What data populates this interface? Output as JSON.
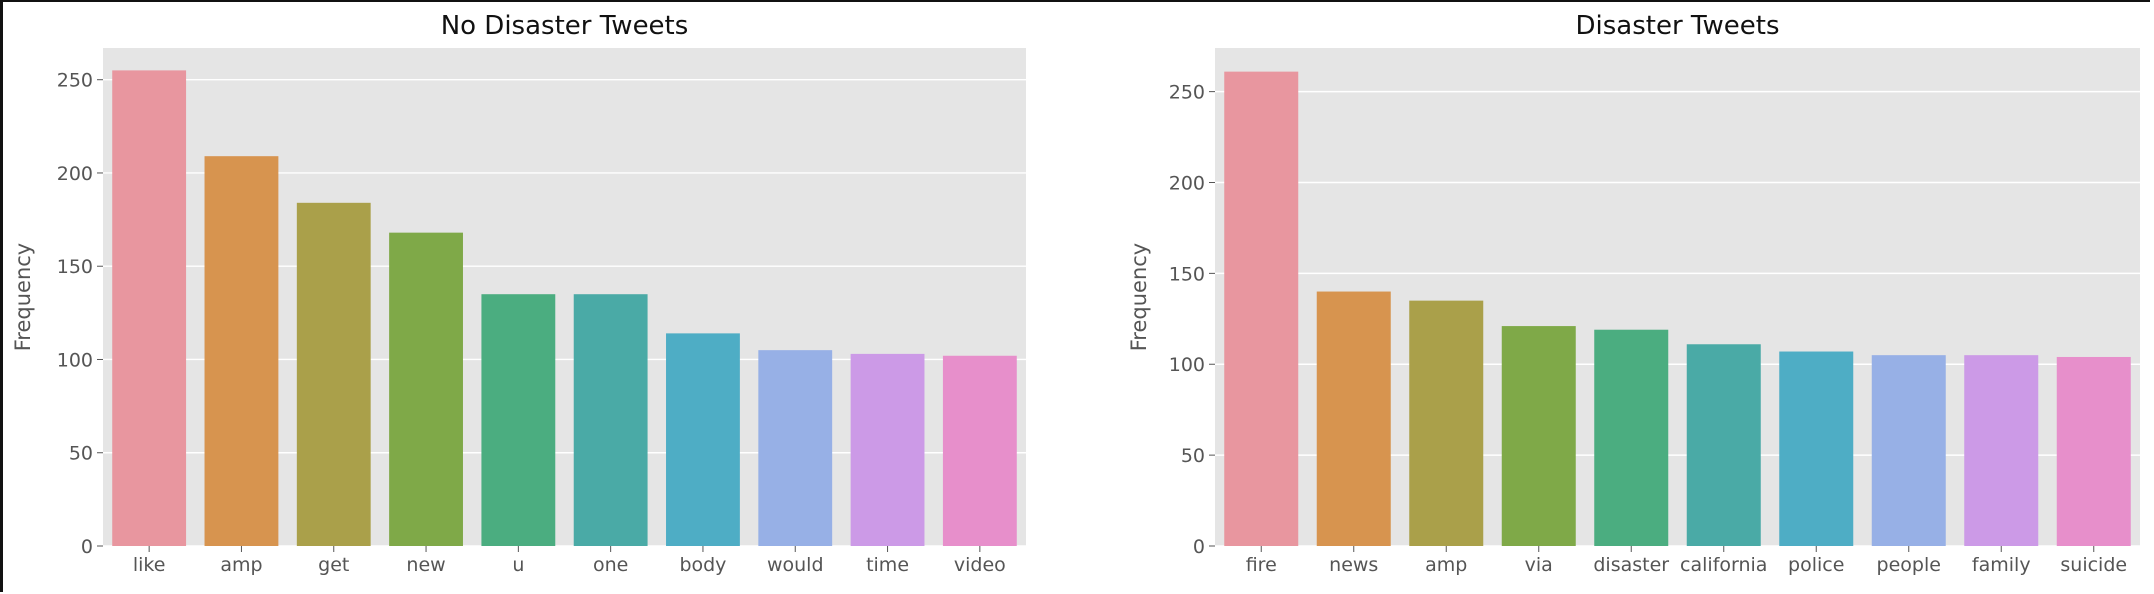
{
  "chart_data": [
    {
      "type": "bar",
      "title": "No Disaster Tweets",
      "xlabel": "",
      "ylabel": "Frequency",
      "categories": [
        "like",
        "amp",
        "get",
        "new",
        "u",
        "one",
        "body",
        "would",
        "time",
        "video"
      ],
      "values": [
        255,
        209,
        184,
        168,
        135,
        135,
        114,
        105,
        103,
        102
      ],
      "ylim": [
        0,
        267
      ],
      "yticks": [
        0,
        50,
        100,
        150,
        200,
        250
      ],
      "grid": true
    },
    {
      "type": "bar",
      "title": "Disaster Tweets",
      "xlabel": "",
      "ylabel": "Frequency",
      "categories": [
        "fire",
        "news",
        "amp",
        "via",
        "disaster",
        "california",
        "police",
        "people",
        "family",
        "suicide"
      ],
      "values": [
        261,
        140,
        135,
        121,
        119,
        111,
        107,
        105,
        105,
        104
      ],
      "ylim": [
        0,
        274
      ],
      "yticks": [
        0,
        50,
        100,
        150,
        200,
        250
      ],
      "grid": true
    }
  ],
  "colors": {
    "plot_background": "#e5e5e5",
    "grid": "#ffffff",
    "bars": [
      "#e8969f",
      "#d7944f",
      "#aaa04a",
      "#7fa948",
      "#4bad80",
      "#4aaaa6",
      "#4eadc5",
      "#97b0e6",
      "#cc9ae7",
      "#e78fcb"
    ]
  }
}
